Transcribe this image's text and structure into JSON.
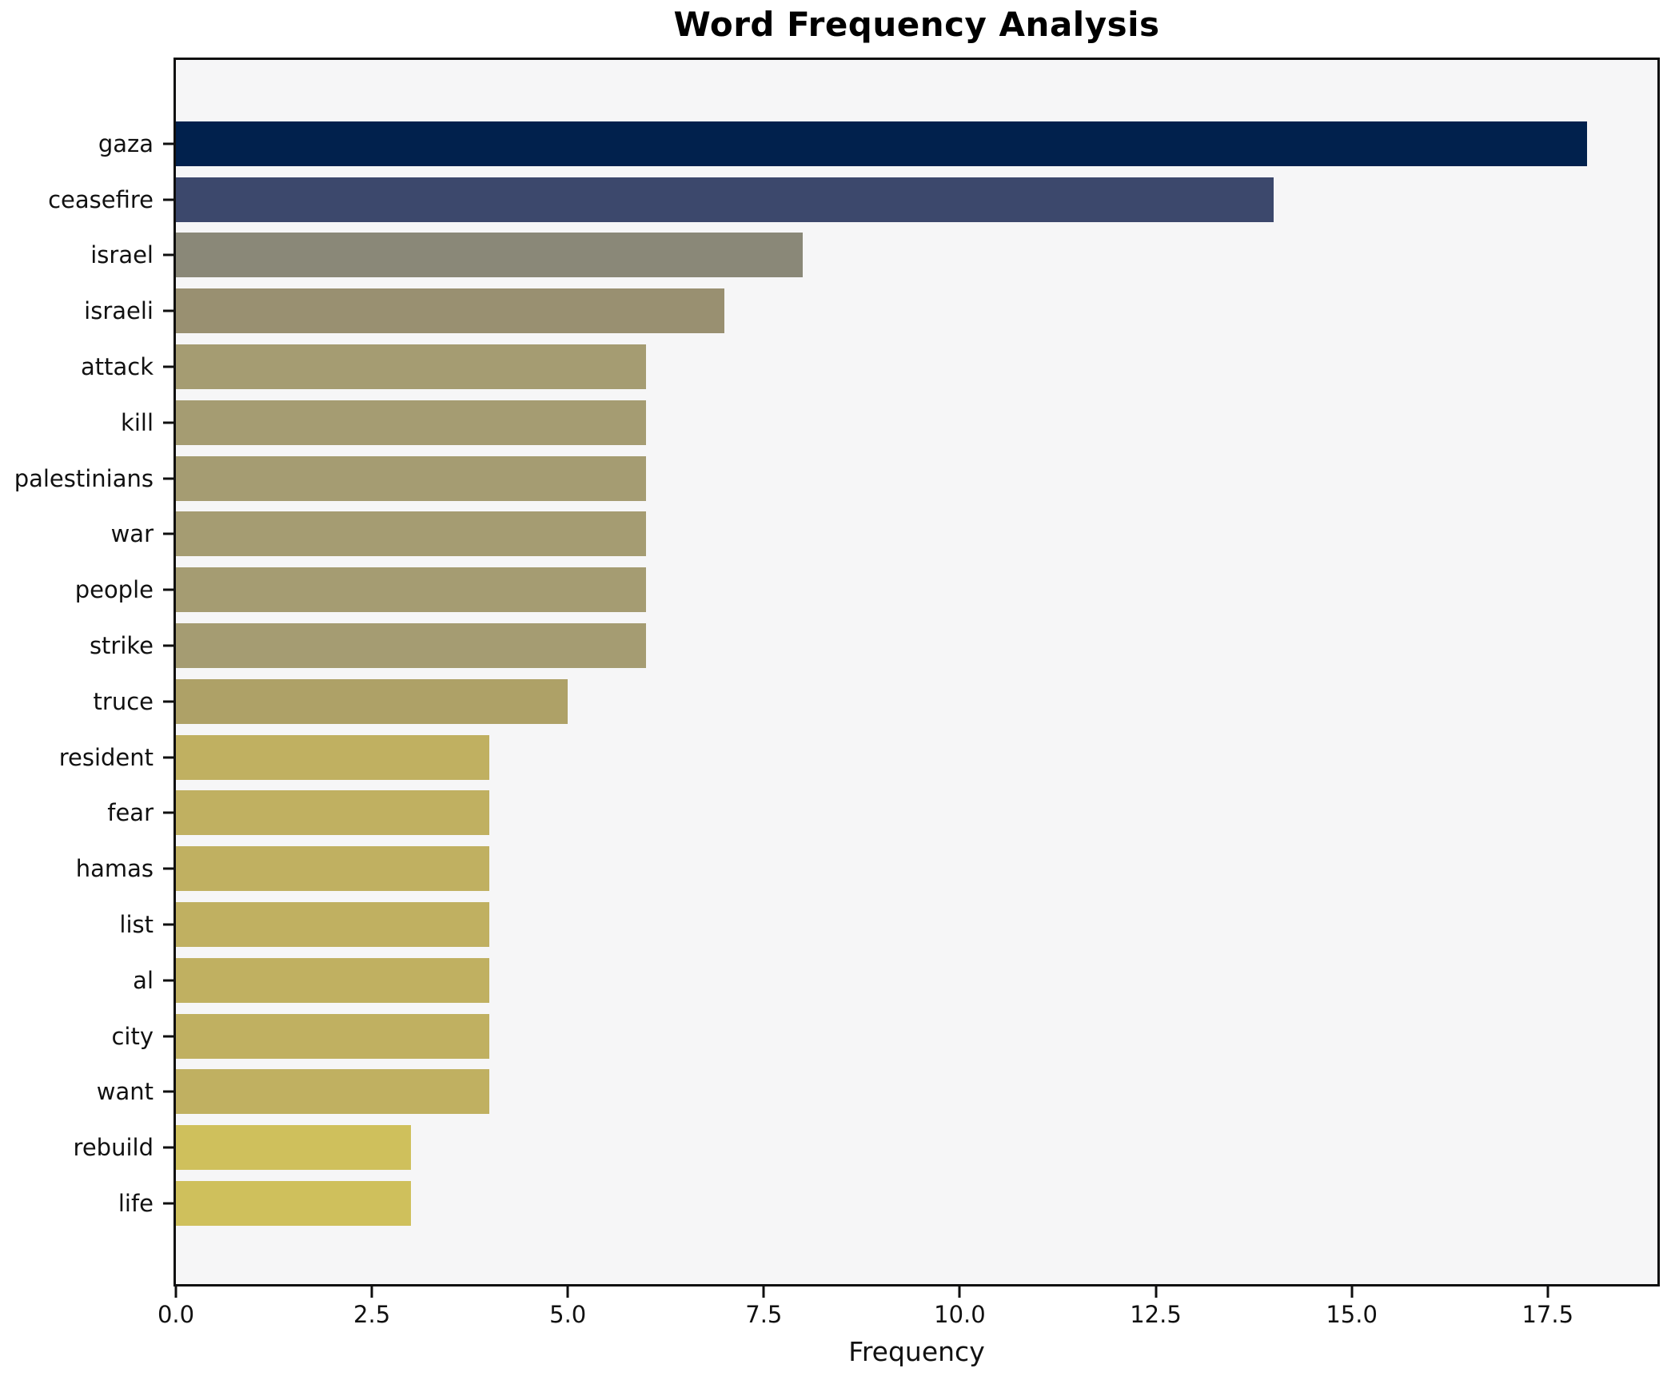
{
  "chart_data": {
    "type": "bar",
    "orientation": "horizontal",
    "title": "Word Frequency Analysis",
    "xlabel": "Frequency",
    "ylabel": "",
    "categories": [
      "gaza",
      "ceasefire",
      "israel",
      "israeli",
      "attack",
      "kill",
      "palestinians",
      "war",
      "people",
      "strike",
      "truce",
      "resident",
      "fear",
      "hamas",
      "list",
      "al",
      "city",
      "want",
      "rebuild",
      "life"
    ],
    "values": [
      18,
      14,
      8,
      7,
      6,
      6,
      6,
      6,
      6,
      6,
      5,
      4,
      4,
      4,
      4,
      4,
      4,
      4,
      3,
      3
    ],
    "bar_colors": [
      "#01214d",
      "#3c486c",
      "#8a8878",
      "#999071",
      "#a59c72",
      "#a59c72",
      "#a59c72",
      "#a59c72",
      "#a59c72",
      "#a59c72",
      "#aea167",
      "#c0b061",
      "#c0b061",
      "#c0b061",
      "#c0b061",
      "#c0b061",
      "#c0b061",
      "#c0b061",
      "#cfc05c",
      "#cfc05c"
    ],
    "xlim": [
      0,
      18.9
    ],
    "x_ticks": [
      "0.0",
      "2.5",
      "5.0",
      "7.5",
      "10.0",
      "12.5",
      "15.0",
      "17.5"
    ],
    "grid": false,
    "legend": null,
    "plot_background": "#f6f6f7",
    "figure_background": "#ffffff",
    "spine_color": "#0f0f0f"
  }
}
